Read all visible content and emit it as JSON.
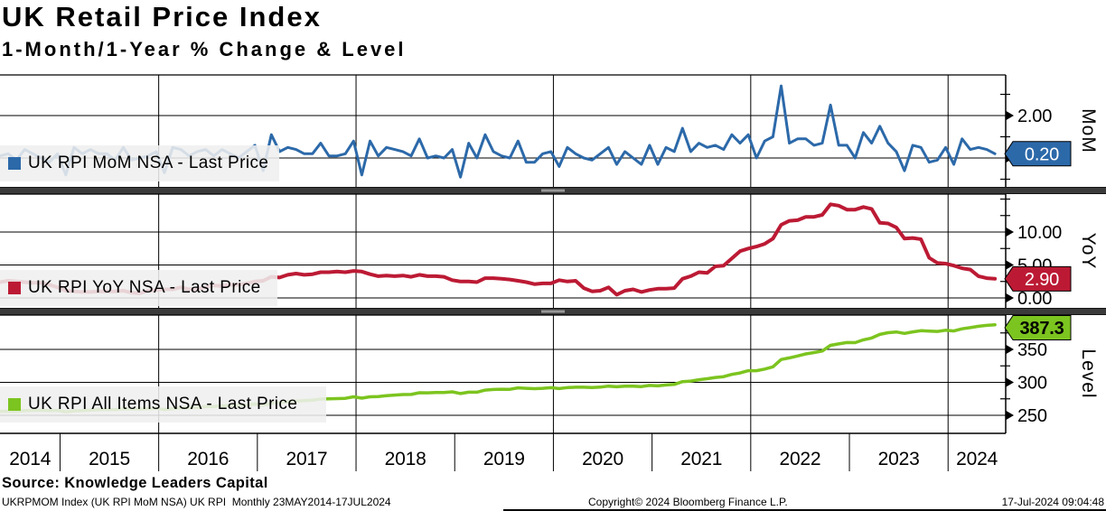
{
  "title": "UK Retail Price Index",
  "subtitle": "1-Month/1-Year % Change & Level",
  "source_line": "Source: Knowledge Leaders Capital",
  "footer": {
    "left": "UKRPMOM Index (UK RPI MoM NSA) UK RPI  Monthly 23MAY2014-17JUL2024",
    "center": "Copyright© 2024 Bloomberg Finance L.P.",
    "right": "17-Jul-2024 09:04:48"
  },
  "colors": {
    "mom_blue": "#2c69a9",
    "yoy_red": "#bc1a34",
    "level_green": "#7cc41f",
    "splitter_gray": "#3b3b3b",
    "legend_bg": "rgba(239,239,239,0.87)",
    "grid_black": "#000000"
  },
  "x_axis": {
    "frequency": "monthly",
    "start": "2014-05",
    "end": "2024-06",
    "years": [
      "2014",
      "2015",
      "2016",
      "2017",
      "2018",
      "2019",
      "2020",
      "2021",
      "2022",
      "2023",
      "2024"
    ]
  },
  "chart_data": [
    {
      "type": "line",
      "name": "UK RPI MoM NSA",
      "legend": "UK RPI MoM NSA - Last Price",
      "panel_label": "MoM",
      "color": "#2c69a9",
      "last_price": "0.20",
      "last_price_text_color": "#ffffff",
      "ylim": [
        -1.35,
        3.9
      ],
      "y_ticks": [
        {
          "value": 2,
          "label": "2.00"
        },
        {
          "value": 0,
          "label": "0.00"
        }
      ],
      "y_minor_ticks": [
        3,
        1,
        -1
      ],
      "values": [
        0.1,
        0.2,
        -0.1,
        0.4,
        0.2,
        0.0,
        -0.2,
        0.2,
        -0.8,
        0.5,
        0.2,
        0.4,
        0.2,
        0.2,
        -0.1,
        0.5,
        -0.1,
        0.0,
        0.1,
        0.3,
        -0.7,
        0.5,
        0.4,
        0.1,
        0.3,
        0.4,
        0.1,
        0.4,
        0.2,
        0.0,
        0.3,
        0.6,
        -0.6,
        1.1,
        0.3,
        0.5,
        0.4,
        0.2,
        0.2,
        0.7,
        0.1,
        0.1,
        0.2,
        0.8,
        -0.8,
        0.8,
        0.1,
        0.5,
        0.4,
        0.3,
        0.1,
        0.9,
        0.0,
        0.1,
        0.0,
        0.4,
        -0.9,
        0.7,
        0.0,
        1.1,
        0.3,
        0.1,
        0.0,
        0.8,
        -0.2,
        -0.2,
        0.2,
        0.3,
        -0.4,
        0.5,
        0.2,
        0.0,
        -0.1,
        0.2,
        0.5,
        -0.3,
        0.3,
        0.0,
        -0.3,
        0.6,
        -0.3,
        0.5,
        0.3,
        1.4,
        0.3,
        0.7,
        0.5,
        0.6,
        0.4,
        1.1,
        0.7,
        1.1,
        0.0,
        0.8,
        1.0,
        3.4,
        0.7,
        0.9,
        0.9,
        0.6,
        0.7,
        2.5,
        0.6,
        0.6,
        0.0,
        1.2,
        0.7,
        1.5,
        0.7,
        0.3,
        -0.6,
        0.6,
        0.5,
        -0.2,
        -0.1,
        0.5,
        -0.3,
        0.9,
        0.4,
        0.5,
        0.4,
        0.2
      ]
    },
    {
      "type": "line",
      "name": "UK RPI YoY NSA",
      "legend": "UK RPI YoY NSA - Last Price",
      "panel_label": "YoY",
      "color": "#bc1a34",
      "last_price": "2.90",
      "last_price_text_color": "#ffffff",
      "ylim": [
        -1.5,
        15.75
      ],
      "y_ticks": [
        {
          "value": 10,
          "label": "10.00"
        },
        {
          "value": 5,
          "label": "5.00"
        },
        {
          "value": 0,
          "label": "0.00"
        }
      ],
      "y_minor_ticks": [
        15,
        12.5,
        7.5,
        2.5
      ],
      "values": [
        2.4,
        2.6,
        2.5,
        2.4,
        2.3,
        2.3,
        2.0,
        1.6,
        1.1,
        1.0,
        0.9,
        0.9,
        1.0,
        1.0,
        1.0,
        1.1,
        0.8,
        0.7,
        1.1,
        1.2,
        1.3,
        1.3,
        1.6,
        1.3,
        1.4,
        1.6,
        1.9,
        1.8,
        2.0,
        2.0,
        2.2,
        2.5,
        2.6,
        3.2,
        3.1,
        3.5,
        3.7,
        3.5,
        3.6,
        3.9,
        3.9,
        4.0,
        3.9,
        4.1,
        4.0,
        3.6,
        3.3,
        3.4,
        3.3,
        3.4,
        3.2,
        3.5,
        3.3,
        3.3,
        3.2,
        2.7,
        2.5,
        2.5,
        2.4,
        3.0,
        3.0,
        2.9,
        2.8,
        2.6,
        2.4,
        2.1,
        2.2,
        2.2,
        2.7,
        2.5,
        2.6,
        1.5,
        1.0,
        1.1,
        1.6,
        0.5,
        1.1,
        1.3,
        0.9,
        1.2,
        1.4,
        1.4,
        1.5,
        2.9,
        3.3,
        3.9,
        3.8,
        4.8,
        4.9,
        6.0,
        7.1,
        7.5,
        7.8,
        8.2,
        9.0,
        11.1,
        11.7,
        11.8,
        12.3,
        12.3,
        12.6,
        14.2,
        14.0,
        13.4,
        13.4,
        13.8,
        13.5,
        11.4,
        11.3,
        10.7,
        9.0,
        9.1,
        8.9,
        6.1,
        5.3,
        5.2,
        4.9,
        4.5,
        4.3,
        3.3,
        3.0,
        2.9
      ]
    },
    {
      "type": "line",
      "name": "UK RPI All Items NSA",
      "legend": "UK RPI All Items NSA - Last Price",
      "panel_label": "Level",
      "color": "#7cc41f",
      "last_price": "387.3",
      "last_price_text_color": "#000000",
      "ylim": [
        222,
        402
      ],
      "y_ticks": [
        {
          "value": 350,
          "label": "350"
        },
        {
          "value": 300,
          "label": "300"
        },
        {
          "value": 250,
          "label": "250"
        }
      ],
      "y_minor_ticks": [
        400,
        375,
        325,
        275,
        225
      ],
      "values": [
        255.9,
        256.3,
        256.0,
        257.0,
        257.6,
        257.7,
        257.1,
        257.5,
        255.4,
        256.7,
        257.1,
        258.0,
        258.5,
        258.9,
        258.6,
        259.8,
        259.6,
        259.5,
        259.8,
        260.6,
        258.8,
        260.0,
        261.1,
        261.4,
        262.1,
        263.1,
        263.4,
        264.4,
        264.9,
        264.8,
        265.5,
        267.1,
        265.5,
        268.4,
        269.3,
        270.6,
        271.7,
        272.3,
        272.9,
        274.7,
        275.1,
        275.3,
        275.8,
        278.1,
        276.0,
        278.1,
        278.3,
        279.7,
        280.7,
        281.5,
        281.7,
        284.2,
        284.1,
        284.5,
        284.6,
        285.6,
        283.0,
        285.0,
        285.1,
        288.2,
        289.2,
        289.6,
        289.5,
        291.7,
        291.0,
        290.4,
        291.0,
        291.9,
        290.6,
        292.0,
        292.6,
        292.6,
        292.2,
        292.7,
        294.2,
        293.3,
        294.3,
        294.3,
        293.5,
        295.4,
        294.6,
        296.0,
        296.9,
        301.1,
        301.9,
        304.0,
        305.5,
        307.4,
        308.6,
        312.0,
        314.3,
        317.7,
        317.7,
        320.2,
        323.5,
        334.6,
        337.1,
        340.0,
        343.2,
        345.2,
        347.6,
        356.2,
        358.3,
        360.4,
        360.3,
        364.5,
        367.2,
        372.8,
        375.3,
        376.4,
        374.2,
        376.6,
        378.4,
        377.8,
        377.3,
        379.0,
        378.0,
        381.3,
        383.0,
        385.0,
        386.4,
        387.3
      ]
    }
  ]
}
